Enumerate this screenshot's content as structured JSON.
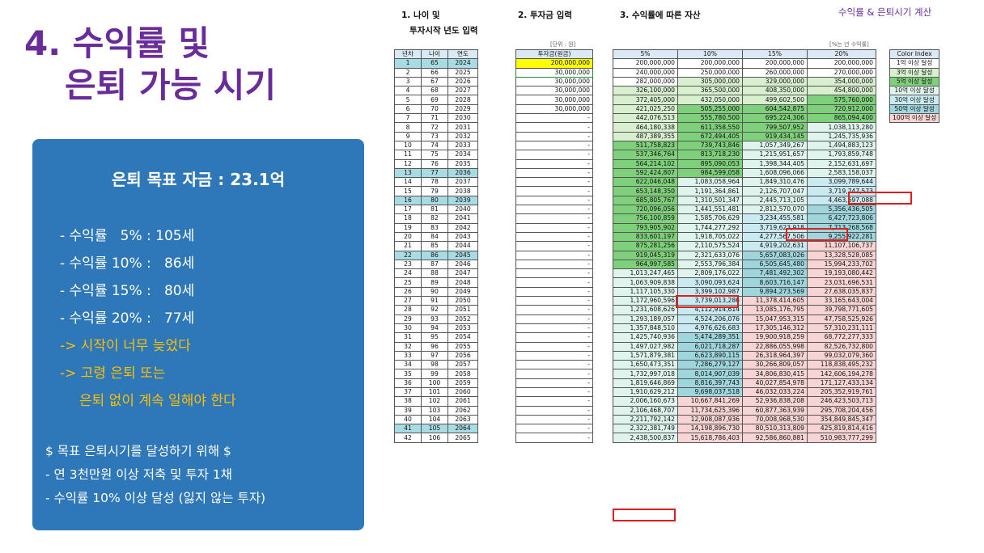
{
  "title": {
    "line1": "4. 수익률 및",
    "line2": "은퇴 가능 시기"
  },
  "corner_label": "수익률 & 은퇴시기 계산",
  "section_headers": {
    "age": [
      "1. 나이 및",
      "투자시작 년도 입력"
    ],
    "investment": "2. 투자금 입력",
    "assets": "3. 수익률에 따른 자산"
  },
  "units": {
    "investment": "[단위 : 원]",
    "assets": "[%는 년 수익률]"
  },
  "summary": {
    "goal": "은퇴 목표 자금 : 23.1억",
    "rates": [
      "- 수익률   5% : 105세",
      "- 수익률 10% :   86세",
      "- 수익률 15% :   80세",
      "- 수익률 20% :   77세"
    ],
    "notes": [
      "-> 시작이 너무 늦었다",
      "-> 고령 은퇴 또는",
      "은퇴 없이 계속 일해야 한다"
    ],
    "how_title": "$ 목표 은퇴시기를 달성하기 위해 $",
    "how_items": [
      "- 연 3천만원 이상 저축 및 투자 1채",
      "- 수익률 10% 이상 달성 (잃지 않는 투자)"
    ]
  },
  "age_table": {
    "headers": [
      "년차",
      "나이",
      "연도"
    ],
    "highlight_rows": [
      1,
      13,
      16,
      22,
      41
    ]
  },
  "investment_table": {
    "header": "투자금(원금)",
    "values": [
      "200,000,000",
      "30,000,000",
      "30,000,000",
      "30,000,000",
      "30,000,000",
      "30,000,000"
    ],
    "empty_mark": "-"
  },
  "returns_table": {
    "headers": [
      "5%",
      "10%",
      "15%",
      "20%"
    ],
    "rows": [
      [
        "200,000,000",
        "200,000,000",
        "200,000,000",
        "200,000,000"
      ],
      [
        "240,000,000",
        "250,000,000",
        "260,000,000",
        "270,000,000"
      ],
      [
        "282,000,000",
        "305,000,000",
        "329,000,000",
        "354,000,000"
      ],
      [
        "326,100,000",
        "365,500,000",
        "408,350,000",
        "454,800,000"
      ],
      [
        "372,405,000",
        "432,050,000",
        "499,602,500",
        "575,760,000"
      ],
      [
        "421,025,250",
        "505,255,000",
        "604,542,875",
        "720,912,000"
      ],
      [
        "442,076,513",
        "555,780,500",
        "695,224,306",
        "865,094,400"
      ],
      [
        "464,180,338",
        "611,358,550",
        "799,507,952",
        "1,038,113,280"
      ],
      [
        "487,389,355",
        "672,494,405",
        "919,434,145",
        "1,245,735,936"
      ],
      [
        "511,758,823",
        "739,743,846",
        "1,057,349,267",
        "1,494,883,123"
      ],
      [
        "537,346,764",
        "813,718,230",
        "1,215,951,657",
        "1,793,859,748"
      ],
      [
        "564,214,102",
        "895,090,053",
        "1,398,344,405",
        "2,152,631,697"
      ],
      [
        "592,424,807",
        "984,599,058",
        "1,608,096,066",
        "2,583,158,037"
      ],
      [
        "622,046,048",
        "1,083,058,964",
        "1,849,310,476",
        "3,099,789,644"
      ],
      [
        "653,148,350",
        "1,191,364,861",
        "2,126,707,047",
        "3,719,747,573"
      ],
      [
        "685,805,767",
        "1,310,501,347",
        "2,445,713,105",
        "4,463,697,088"
      ],
      [
        "720,096,056",
        "1,441,551,481",
        "2,812,570,070",
        "5,356,436,505"
      ],
      [
        "756,100,859",
        "1,585,706,629",
        "3,234,455,581",
        "6,427,723,806"
      ],
      [
        "793,905,902",
        "1,744,277,292",
        "3,719,623,918",
        "7,713,268,568"
      ],
      [
        "833,601,197",
        "1,918,705,022",
        "4,277,567,506",
        "9,255,922,281"
      ],
      [
        "875,281,256",
        "2,110,575,524",
        "4,919,202,631",
        "11,107,106,737"
      ],
      [
        "919,045,319",
        "2,321,633,076",
        "5,657,083,026",
        "13,328,528,085"
      ],
      [
        "964,997,585",
        "2,553,796,384",
        "6,505,645,480",
        "15,994,233,702"
      ],
      [
        "1,013,247,465",
        "2,809,176,022",
        "7,481,492,302",
        "19,193,080,442"
      ],
      [
        "1,063,909,838",
        "3,090,093,624",
        "8,603,716,147",
        "23,031,696,531"
      ],
      [
        "1,117,105,330",
        "3,399,102,987",
        "9,894,273,569",
        "27,638,035,837"
      ],
      [
        "1,172,960,596",
        "3,739,013,286",
        "11,378,414,605",
        "33,165,643,004"
      ],
      [
        "1,231,608,626",
        "4,112,914,614",
        "13,085,176,795",
        "39,798,771,605"
      ],
      [
        "1,293,189,057",
        "4,524,206,076",
        "15,047,953,315",
        "47,758,525,926"
      ],
      [
        "1,357,848,510",
        "4,976,626,683",
        "17,305,146,312",
        "57,310,231,111"
      ],
      [
        "1,425,740,936",
        "5,474,289,351",
        "19,900,918,259",
        "68,772,277,333"
      ],
      [
        "1,497,027,982",
        "6,021,718,287",
        "22,886,055,998",
        "82,526,732,800"
      ],
      [
        "1,571,879,381",
        "6,623,890,115",
        "26,318,964,397",
        "99,032,079,360"
      ],
      [
        "1,650,473,351",
        "7,286,279,127",
        "30,266,809,057",
        "118,838,495,232"
      ],
      [
        "1,732,997,018",
        "8,014,907,039",
        "34,806,830,415",
        "142,606,194,278"
      ],
      [
        "1,819,646,869",
        "8,816,397,743",
        "40,027,854,978",
        "171,127,433,134"
      ],
      [
        "1,910,629,212",
        "9,698,037,518",
        "46,032,033,224",
        "205,352,919,761"
      ],
      [
        "2,006,160,673",
        "10,667,841,269",
        "52,936,838,208",
        "246,423,503,713"
      ],
      [
        "2,106,468,707",
        "11,734,625,396",
        "60,877,363,939",
        "295,708,204,456"
      ],
      [
        "2,211,792,142",
        "12,908,087,936",
        "70,008,968,530",
        "354,849,845,347"
      ],
      [
        "2,322,381,749",
        "14,198,896,730",
        "80,510,313,809",
        "425,819,814,416"
      ],
      [
        "2,438,500,837",
        "15,618,786,403",
        "92,586,860,881",
        "510,983,777,299"
      ]
    ]
  },
  "color_index": {
    "header": "Color Index",
    "items": [
      {
        "label": "1억 이상 달성",
        "color": "#ffffff"
      },
      {
        "label": "3억 이상 달성",
        "color": "#d8f0d0"
      },
      {
        "label": "5억 이상 달성",
        "color": "#7fd07a"
      },
      {
        "label": "10억 이상 달성",
        "color": "#e0f4ee"
      },
      {
        "label": "30억 이상 달성",
        "color": "#c9eaf0"
      },
      {
        "label": "50억 이상 달성",
        "color": "#9fd6de"
      },
      {
        "label": "100억 이상 달성",
        "color": "#f8d4d4"
      }
    ]
  }
}
